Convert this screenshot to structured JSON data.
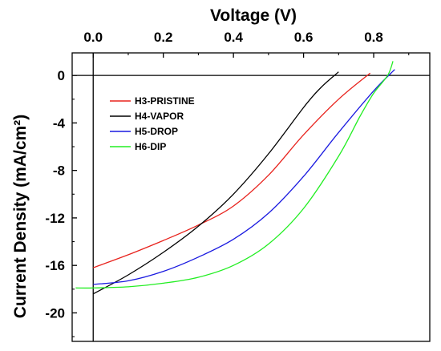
{
  "chart_data": {
    "type": "line",
    "title": "",
    "xlabel": "Voltage (V)",
    "ylabel": "Current Density (mA/cm²)",
    "xlabel_position": "top",
    "xlim": [
      -0.06,
      0.96
    ],
    "ylim": [
      -22.4,
      1.9
    ],
    "x_ticks": [
      "0.0",
      "0.2",
      "0.4",
      "0.6",
      "0.8"
    ],
    "x_tick_values": [
      0,
      0.2,
      0.4,
      0.6,
      0.8
    ],
    "y_ticks": [
      "0",
      "-4",
      "-8",
      "-12",
      "-16",
      "-20"
    ],
    "y_tick_values": [
      0,
      -4,
      -8,
      -12,
      -16,
      -20
    ],
    "grid": false,
    "legend_position": "upper-left",
    "series": [
      {
        "name": "H3-PRISTINE",
        "color": "#e8231d",
        "points": [
          [
            0.0,
            -16.2
          ],
          [
            0.1,
            -15.1
          ],
          [
            0.2,
            -13.9
          ],
          [
            0.3,
            -12.6
          ],
          [
            0.4,
            -11.0
          ],
          [
            0.5,
            -8.4
          ],
          [
            0.6,
            -5.0
          ],
          [
            0.7,
            -2.0
          ],
          [
            0.79,
            0.2
          ]
        ]
      },
      {
        "name": "H4-VAPOR",
        "color": "#000000",
        "points": [
          [
            0.0,
            -18.4
          ],
          [
            0.1,
            -16.8
          ],
          [
            0.2,
            -14.9
          ],
          [
            0.3,
            -12.7
          ],
          [
            0.4,
            -10.0
          ],
          [
            0.5,
            -6.6
          ],
          [
            0.6,
            -2.7
          ],
          [
            0.65,
            -1.0
          ],
          [
            0.7,
            0.3
          ]
        ]
      },
      {
        "name": "H5-DROP",
        "color": "#1a1ae0",
        "points": [
          [
            0.0,
            -17.6
          ],
          [
            0.1,
            -17.3
          ],
          [
            0.2,
            -16.5
          ],
          [
            0.3,
            -15.3
          ],
          [
            0.4,
            -13.8
          ],
          [
            0.5,
            -11.6
          ],
          [
            0.6,
            -8.5
          ],
          [
            0.7,
            -4.8
          ],
          [
            0.8,
            -1.3
          ],
          [
            0.86,
            0.5
          ]
        ]
      },
      {
        "name": "H6-DIP",
        "color": "#22ee22",
        "points": [
          [
            -0.05,
            -17.9
          ],
          [
            0.0,
            -17.9
          ],
          [
            0.1,
            -17.8
          ],
          [
            0.2,
            -17.5
          ],
          [
            0.3,
            -17.0
          ],
          [
            0.4,
            -16.0
          ],
          [
            0.5,
            -14.2
          ],
          [
            0.6,
            -11.2
          ],
          [
            0.7,
            -6.8
          ],
          [
            0.76,
            -3.5
          ],
          [
            0.8,
            -1.5
          ],
          [
            0.84,
            0.0
          ],
          [
            0.855,
            1.2
          ]
        ]
      }
    ]
  }
}
